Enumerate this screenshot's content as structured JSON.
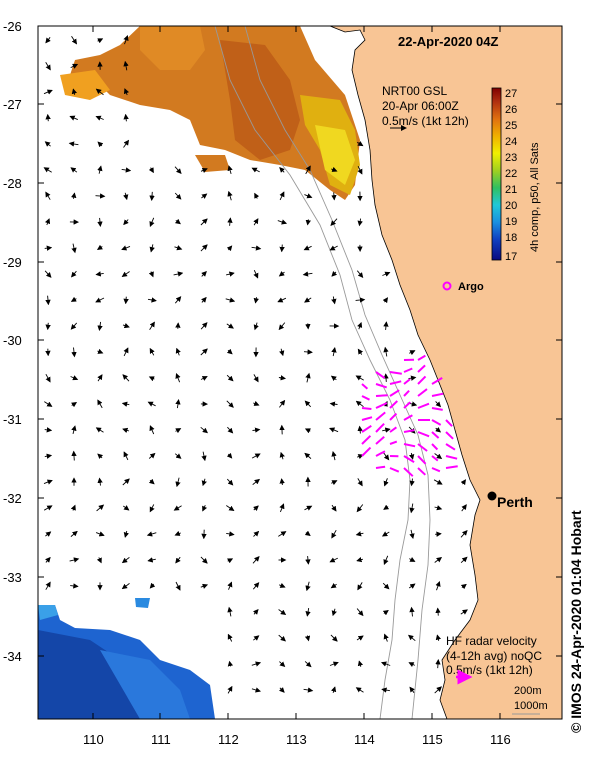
{
  "title": "22-Apr-2020 04Z",
  "axes": {
    "lat_ticks": [
      "-26",
      "-27",
      "-28",
      "-29",
      "-30",
      "-31",
      "-32",
      "-33",
      "-34"
    ],
    "lon_ticks": [
      "110",
      "111",
      "112",
      "113",
      "114",
      "115",
      "116"
    ]
  },
  "currents_legend": {
    "line1": "NRT00 GSL",
    "line2": "20-Apr 06:00Z",
    "line3": "0.5m/s (1kt 12h)"
  },
  "colorbar": {
    "ticks": [
      "27",
      "26",
      "25",
      "24",
      "23",
      "22",
      "21",
      "20",
      "19",
      "18",
      "17"
    ],
    "label": "4h comp, p50, All Sats"
  },
  "markers": {
    "argo": "Argo",
    "city": "Perth"
  },
  "radar_legend": {
    "line1": "HF radar velocity",
    "line2": "(4-12h avg) noQC",
    "line3": "0.5m/s (1kt 12h)"
  },
  "isobaths": {
    "a": "200m",
    "b": "1000m"
  },
  "credit": "© IMOS 24-Apr-2020 01:04 Hobart",
  "colors": {
    "land": "#f8c595",
    "radar": "#ff00ff",
    "argo": "#ff00ff"
  }
}
